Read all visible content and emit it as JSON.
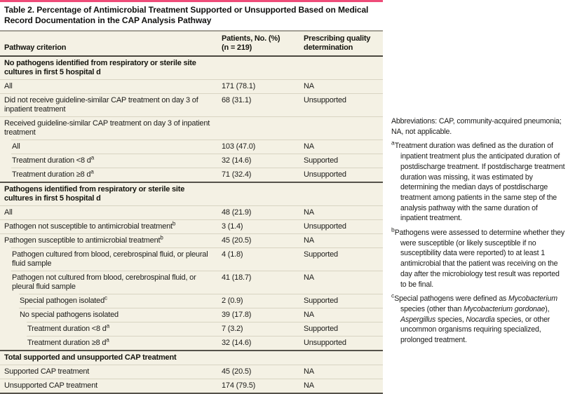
{
  "colors": {
    "accent_bar": "#ee4b78",
    "table_background": "#f4f1e4",
    "rule_dark": "#55524a",
    "rule_light": "#d8d4c2"
  },
  "table": {
    "title": "Table 2. Percentage of Antimicrobial Treatment Supported or Unsupported Based on Medical Record Documentation in the CAP Analysis Pathway",
    "columns": {
      "criterion": "Pathway criterion",
      "patients_line1": "Patients, No. (%)",
      "patients_line2": "(n = 219)",
      "quality_line1": "Prescribing quality",
      "quality_line2": "determination"
    },
    "rows": [
      {
        "type": "section",
        "label": "No pathogens identified from respiratory or sterile site cultures in first 5 hospital d"
      },
      {
        "indent": 0,
        "label": "All",
        "value": "171 (78.1)",
        "quality": "NA"
      },
      {
        "indent": 0,
        "label": "Did not receive guideline-similar CAP treatment on day 3 of inpatient treatment",
        "value": "68 (31.1)",
        "quality": "Unsupported"
      },
      {
        "indent": 0,
        "label": "Received guideline-similar CAP treatment on day 3 of inpatient treatment",
        "value": "",
        "quality": ""
      },
      {
        "indent": 1,
        "label": "All",
        "value": "103 (47.0)",
        "quality": "NA"
      },
      {
        "indent": 1,
        "label": "Treatment duration <8 d",
        "sup": "a",
        "value": "32 (14.6)",
        "quality": "Supported"
      },
      {
        "indent": 1,
        "label": "Treatment duration ≥8 d",
        "sup": "a",
        "value": "71 (32.4)",
        "quality": "Unsupported"
      },
      {
        "type": "section",
        "label": "Pathogens identified from respiratory or sterile site cultures in first 5 hospital d"
      },
      {
        "indent": 0,
        "label": "All",
        "value": "48 (21.9)",
        "quality": "NA"
      },
      {
        "indent": 0,
        "label": "Pathogen not susceptible to antimicrobial treatment",
        "sup": "b",
        "value": "3 (1.4)",
        "quality": "Unsupported"
      },
      {
        "indent": 0,
        "label": "Pathogen susceptible to antimicrobial treatment",
        "sup": "b",
        "value": "45 (20.5)",
        "quality": "NA"
      },
      {
        "indent": 1,
        "label": "Pathogen cultured from blood, cerebrospinal fluid, or pleural fluid sample",
        "value": "4 (1.8)",
        "quality": "Supported"
      },
      {
        "indent": 1,
        "label": "Pathogen not cultured from blood, cerebrospinal fluid, or pleural fluid sample",
        "value": "41 (18.7)",
        "quality": "NA"
      },
      {
        "indent": 2,
        "label": "Special pathogen isolated",
        "sup": "c",
        "value": "2 (0.9)",
        "quality": "Supported"
      },
      {
        "indent": 2,
        "label": "No special pathogens isolated",
        "value": "39 (17.8)",
        "quality": "NA"
      },
      {
        "indent": 3,
        "label": "Treatment duration <8 d",
        "sup": "a",
        "value": "7 (3.2)",
        "quality": "Supported"
      },
      {
        "indent": 3,
        "label": "Treatment duration ≥8 d",
        "sup": "a",
        "value": "32 (14.6)",
        "quality": "Unsupported"
      },
      {
        "type": "section",
        "label": "Total supported and unsupported CAP treatment"
      },
      {
        "indent": 0,
        "label": "Supported CAP treatment",
        "value": "45 (20.5)",
        "quality": "NA"
      },
      {
        "indent": 0,
        "label": "Unsupported CAP treatment",
        "value": "174 (79.5)",
        "quality": "NA"
      }
    ]
  },
  "footnotes": {
    "abbreviations": "Abbreviations: CAP, community-acquired pneumonia; NA, not applicable.",
    "a": {
      "marker": "a",
      "text": "Treatment duration was defined as the duration of inpatient treatment plus the anticipated duration of postdischarge treatment. If postdischarge treatment duration was missing, it was estimated by determining the median days of postdischarge treatment among patients in the same step of the analysis pathway with the same duration of inpatient treatment."
    },
    "b": {
      "marker": "b",
      "text": "Pathogens were assessed to determine whether they were susceptible (or likely susceptible if no susceptibility data were reported) to at least 1 antimicrobial that the patient was receiving on the day after the microbiology test result was reported to be final."
    },
    "c": {
      "marker": "c",
      "segments": [
        "Special pathogens were defined as ",
        "Mycobacterium",
        " species (other than ",
        "Mycobacterium gordonae",
        "), ",
        "Aspergillus",
        " species, ",
        "Nocardia",
        " species, or other uncommon organisms requiring specialized, prolonged treatment."
      ]
    }
  }
}
